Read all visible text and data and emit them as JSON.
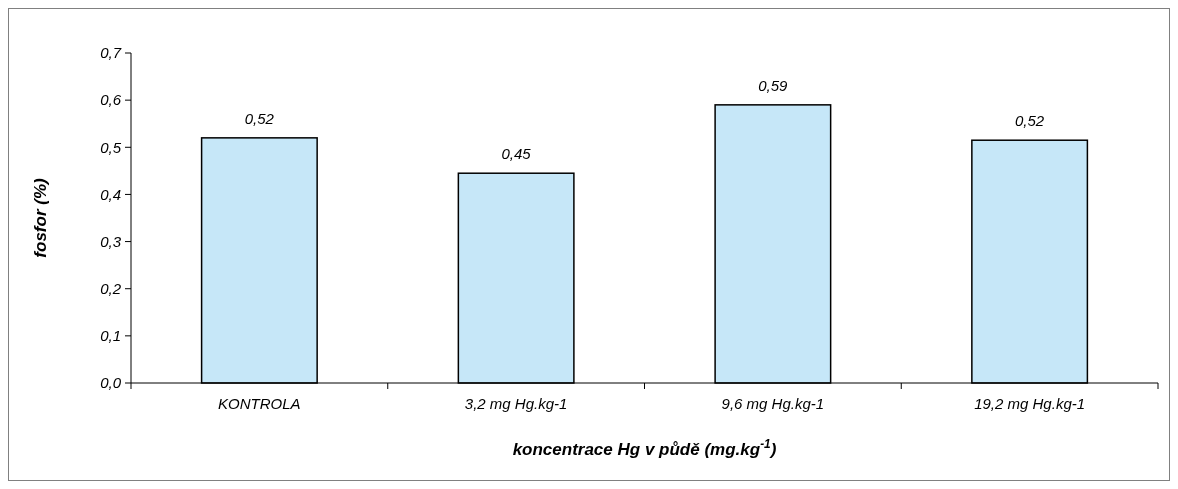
{
  "chart_data": {
    "type": "bar",
    "xlabel": "koncentrace Hg v půdě (mg.kg$^{-1}$)",
    "ylabel": "fosfor (%)",
    "categories": [
      "KONTROLA",
      "3,2 mg Hg.kg-1",
      "9,6 mg Hg.kg-1",
      "19,2 mg Hg.kg-1"
    ],
    "values": [
      0.52,
      0.445,
      0.59,
      0.515
    ],
    "value_labels": [
      "0,52",
      "0,45",
      "0,59",
      "0,52"
    ],
    "color": "#c6e7f8",
    "ylim": [
      0,
      0.7
    ],
    "yticks": [
      {
        "value": 0,
        "label": "0,0"
      },
      {
        "value": 0.1,
        "label": "0,1"
      },
      {
        "value": 0.2,
        "label": "0,2"
      },
      {
        "value": 0.3,
        "label": "0,3"
      },
      {
        "value": 0.4,
        "label": "0,4"
      },
      {
        "value": 0.5,
        "label": "0,5"
      },
      {
        "value": 0.6,
        "label": "0,6"
      },
      {
        "value": 0.7,
        "label": "0,7"
      }
    ],
    "grid": false
  }
}
